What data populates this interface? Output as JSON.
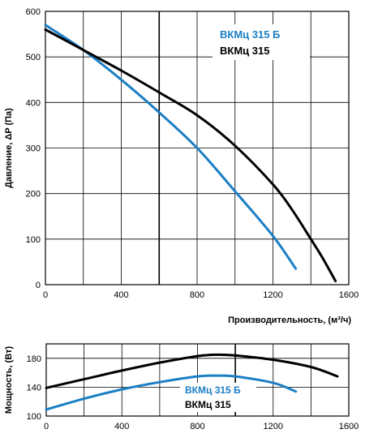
{
  "chart_data": [
    {
      "type": "line",
      "xlabel": "Производительность, (м³/ч)",
      "ylabel": "Давление, ΔP (Па)",
      "xlim": [
        0,
        1600
      ],
      "ylim": [
        0,
        600
      ],
      "xticks": [
        "0",
        "400",
        "800",
        "1200",
        "1600"
      ],
      "yticks": [
        "0",
        "100",
        "200",
        "300",
        "400",
        "500",
        "600"
      ],
      "grid": true,
      "legend_position": "top-right",
      "series": [
        {
          "name": "ВКМц 315 Б",
          "color": "#1b7fc4",
          "x": [
            0,
            200,
            400,
            600,
            800,
            1000,
            1200,
            1320
          ],
          "y": [
            570,
            515,
            450,
            378,
            300,
            205,
            107,
            35
          ]
        },
        {
          "name": "ВКМц 315",
          "color": "#000000",
          "x": [
            0,
            200,
            400,
            600,
            800,
            1000,
            1200,
            1300,
            1400,
            1460,
            1530
          ],
          "y": [
            560,
            515,
            470,
            422,
            372,
            305,
            220,
            165,
            100,
            60,
            8
          ]
        }
      ]
    },
    {
      "type": "line",
      "xlabel": "",
      "ylabel": "Мощность, (Вт)",
      "xlim": [
        0,
        1600
      ],
      "ylim": [
        100,
        200
      ],
      "xticks": [
        "0",
        "400",
        "800",
        "1200",
        "1600"
      ],
      "yticks": [
        "100",
        "140",
        "180"
      ],
      "grid": true,
      "legend_position": "bottom-center",
      "series": [
        {
          "name": "ВКМц 315 Б",
          "color": "#1b7fc4",
          "x": [
            0,
            200,
            400,
            600,
            800,
            900,
            1000,
            1200,
            1320
          ],
          "y": [
            109,
            124,
            137,
            147,
            155,
            156,
            155,
            146,
            134
          ]
        },
        {
          "name": "ВКМц 315",
          "color": "#000000",
          "x": [
            0,
            200,
            400,
            600,
            800,
            900,
            1000,
            1200,
            1400,
            1540
          ],
          "y": [
            139,
            151,
            163,
            174,
            183,
            185,
            184,
            178,
            168,
            155
          ]
        }
      ]
    }
  ]
}
